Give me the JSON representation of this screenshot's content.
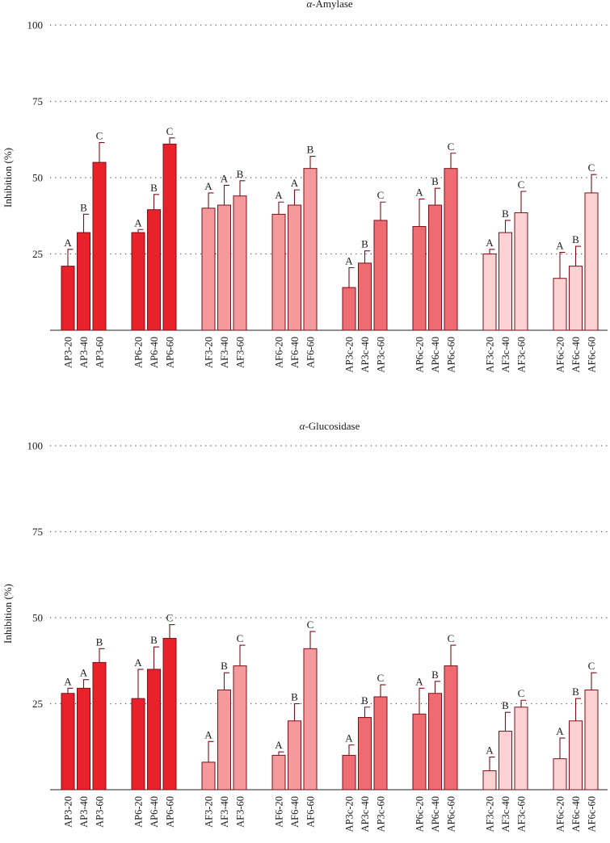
{
  "chart_data": [
    {
      "type": "bar",
      "title": "α-Amylase",
      "title_greek": "α",
      "title_rest": "-Amylase",
      "xlabel": "",
      "ylabel": "Inhibition (%)",
      "ylim": [
        0,
        100
      ],
      "yticks": [
        25,
        50,
        75,
        100
      ],
      "grid": true,
      "groups": [
        {
          "color": "#e8212b",
          "categories": [
            "AP3-20",
            "AP3-40",
            "AP3-60"
          ],
          "values": [
            21,
            32,
            55
          ],
          "errors": [
            5.5,
            6,
            6.5
          ],
          "letters": [
            "A",
            "B",
            "C"
          ]
        },
        {
          "color": "#e8212b",
          "categories": [
            "AP6-20",
            "AP6-40",
            "AP6-60"
          ],
          "values": [
            32,
            39.5,
            61
          ],
          "errors": [
            1,
            5,
            2
          ],
          "letters": [
            "A",
            "B",
            "C"
          ]
        },
        {
          "color": "#f49a9c",
          "categories": [
            "AF3-20",
            "AF3-40",
            "AF3-60"
          ],
          "values": [
            40,
            41,
            44
          ],
          "errors": [
            5,
            6.5,
            5
          ],
          "letters": [
            "A",
            "A",
            "B"
          ]
        },
        {
          "color": "#f49a9c",
          "categories": [
            "AF6-20",
            "AF6-40",
            "AF6-60"
          ],
          "values": [
            38,
            41,
            53
          ],
          "errors": [
            4,
            5,
            4
          ],
          "letters": [
            "A",
            "A",
            "B"
          ]
        },
        {
          "color": "#ef6b72",
          "categories": [
            "AP3c-20",
            "AP3c-40",
            "AP3c-60"
          ],
          "values": [
            14,
            22,
            36
          ],
          "errors": [
            6.5,
            4,
            6
          ],
          "letters": [
            "A",
            "B",
            "C"
          ]
        },
        {
          "color": "#ef6b72",
          "categories": [
            "AP6c-20",
            "AP6c-40",
            "AP6c-60"
          ],
          "values": [
            34,
            41,
            53
          ],
          "errors": [
            9,
            5.5,
            5
          ],
          "letters": [
            "A",
            "B",
            "C"
          ]
        },
        {
          "color": "#fbd1d2",
          "categories": [
            "AF3c-20",
            "AF3c-40",
            "AF3c-60"
          ],
          "values": [
            25,
            32,
            38.5
          ],
          "errors": [
            1.5,
            4,
            7
          ],
          "letters": [
            "A",
            "B",
            "C"
          ]
        },
        {
          "color": "#fbd1d2",
          "categories": [
            "AF6c-20",
            "AF6c-40",
            "AF6c-60"
          ],
          "values": [
            17,
            21,
            45
          ],
          "errors": [
            8.5,
            6.5,
            6
          ],
          "letters": [
            "A",
            "B",
            "C"
          ]
        }
      ]
    },
    {
      "type": "bar",
      "title": "α-Glucosidase",
      "title_greek": "α",
      "title_rest": "-Glucosidase",
      "xlabel": "",
      "ylabel": "Inhibition (%)",
      "ylim": [
        0,
        100
      ],
      "yticks": [
        25,
        50,
        75,
        100
      ],
      "grid": true,
      "groups": [
        {
          "color": "#e8212b",
          "categories": [
            "AP3-20",
            "AP3-40",
            "AP3-60"
          ],
          "values": [
            28,
            29.5,
            37
          ],
          "errors": [
            1.5,
            2.5,
            4
          ],
          "letters": [
            "A",
            "A",
            "B"
          ]
        },
        {
          "color": "#e8212b",
          "categories": [
            "AP6-20",
            "AP6-40",
            "AP6-60"
          ],
          "values": [
            26.5,
            35,
            44
          ],
          "errors": [
            8.5,
            6.5,
            4
          ],
          "letters": [
            "A",
            "B",
            "C"
          ]
        },
        {
          "color": "#f49a9c",
          "categories": [
            "AF3-20",
            "AF3-40",
            "AF3-60"
          ],
          "values": [
            8,
            29,
            36
          ],
          "errors": [
            6,
            5,
            6
          ],
          "letters": [
            "A",
            "B",
            "C"
          ]
        },
        {
          "color": "#f49a9c",
          "categories": [
            "AF6-20",
            "AF6-40",
            "AF6-60"
          ],
          "values": [
            10,
            20,
            41
          ],
          "errors": [
            1,
            5,
            5
          ],
          "letters": [
            "A",
            "B",
            "C"
          ]
        },
        {
          "color": "#ef6b72",
          "categories": [
            "AP3c-20",
            "AP3c-40",
            "AP3c-60"
          ],
          "values": [
            10,
            21,
            27
          ],
          "errors": [
            3,
            3,
            3.5
          ],
          "letters": [
            "A",
            "B",
            "C"
          ]
        },
        {
          "color": "#ef6b72",
          "categories": [
            "AP6c-20",
            "AP6c-40",
            "AP6c-60"
          ],
          "values": [
            22,
            28,
            36
          ],
          "errors": [
            7.5,
            3.5,
            6
          ],
          "letters": [
            "A",
            "B",
            "C"
          ]
        },
        {
          "color": "#fbd1d2",
          "categories": [
            "AF3c-20",
            "AF3c-40",
            "AF3c-60"
          ],
          "values": [
            5.5,
            17,
            24
          ],
          "errors": [
            4,
            5.5,
            2
          ],
          "letters": [
            "A",
            "B",
            "C"
          ]
        },
        {
          "color": "#fbd1d2",
          "categories": [
            "AF6c-20",
            "AF6c-40",
            "AF6c-60"
          ],
          "values": [
            9,
            20,
            29
          ],
          "errors": [
            6,
            6.5,
            5
          ],
          "letters": [
            "A",
            "B",
            "C"
          ]
        }
      ]
    }
  ]
}
